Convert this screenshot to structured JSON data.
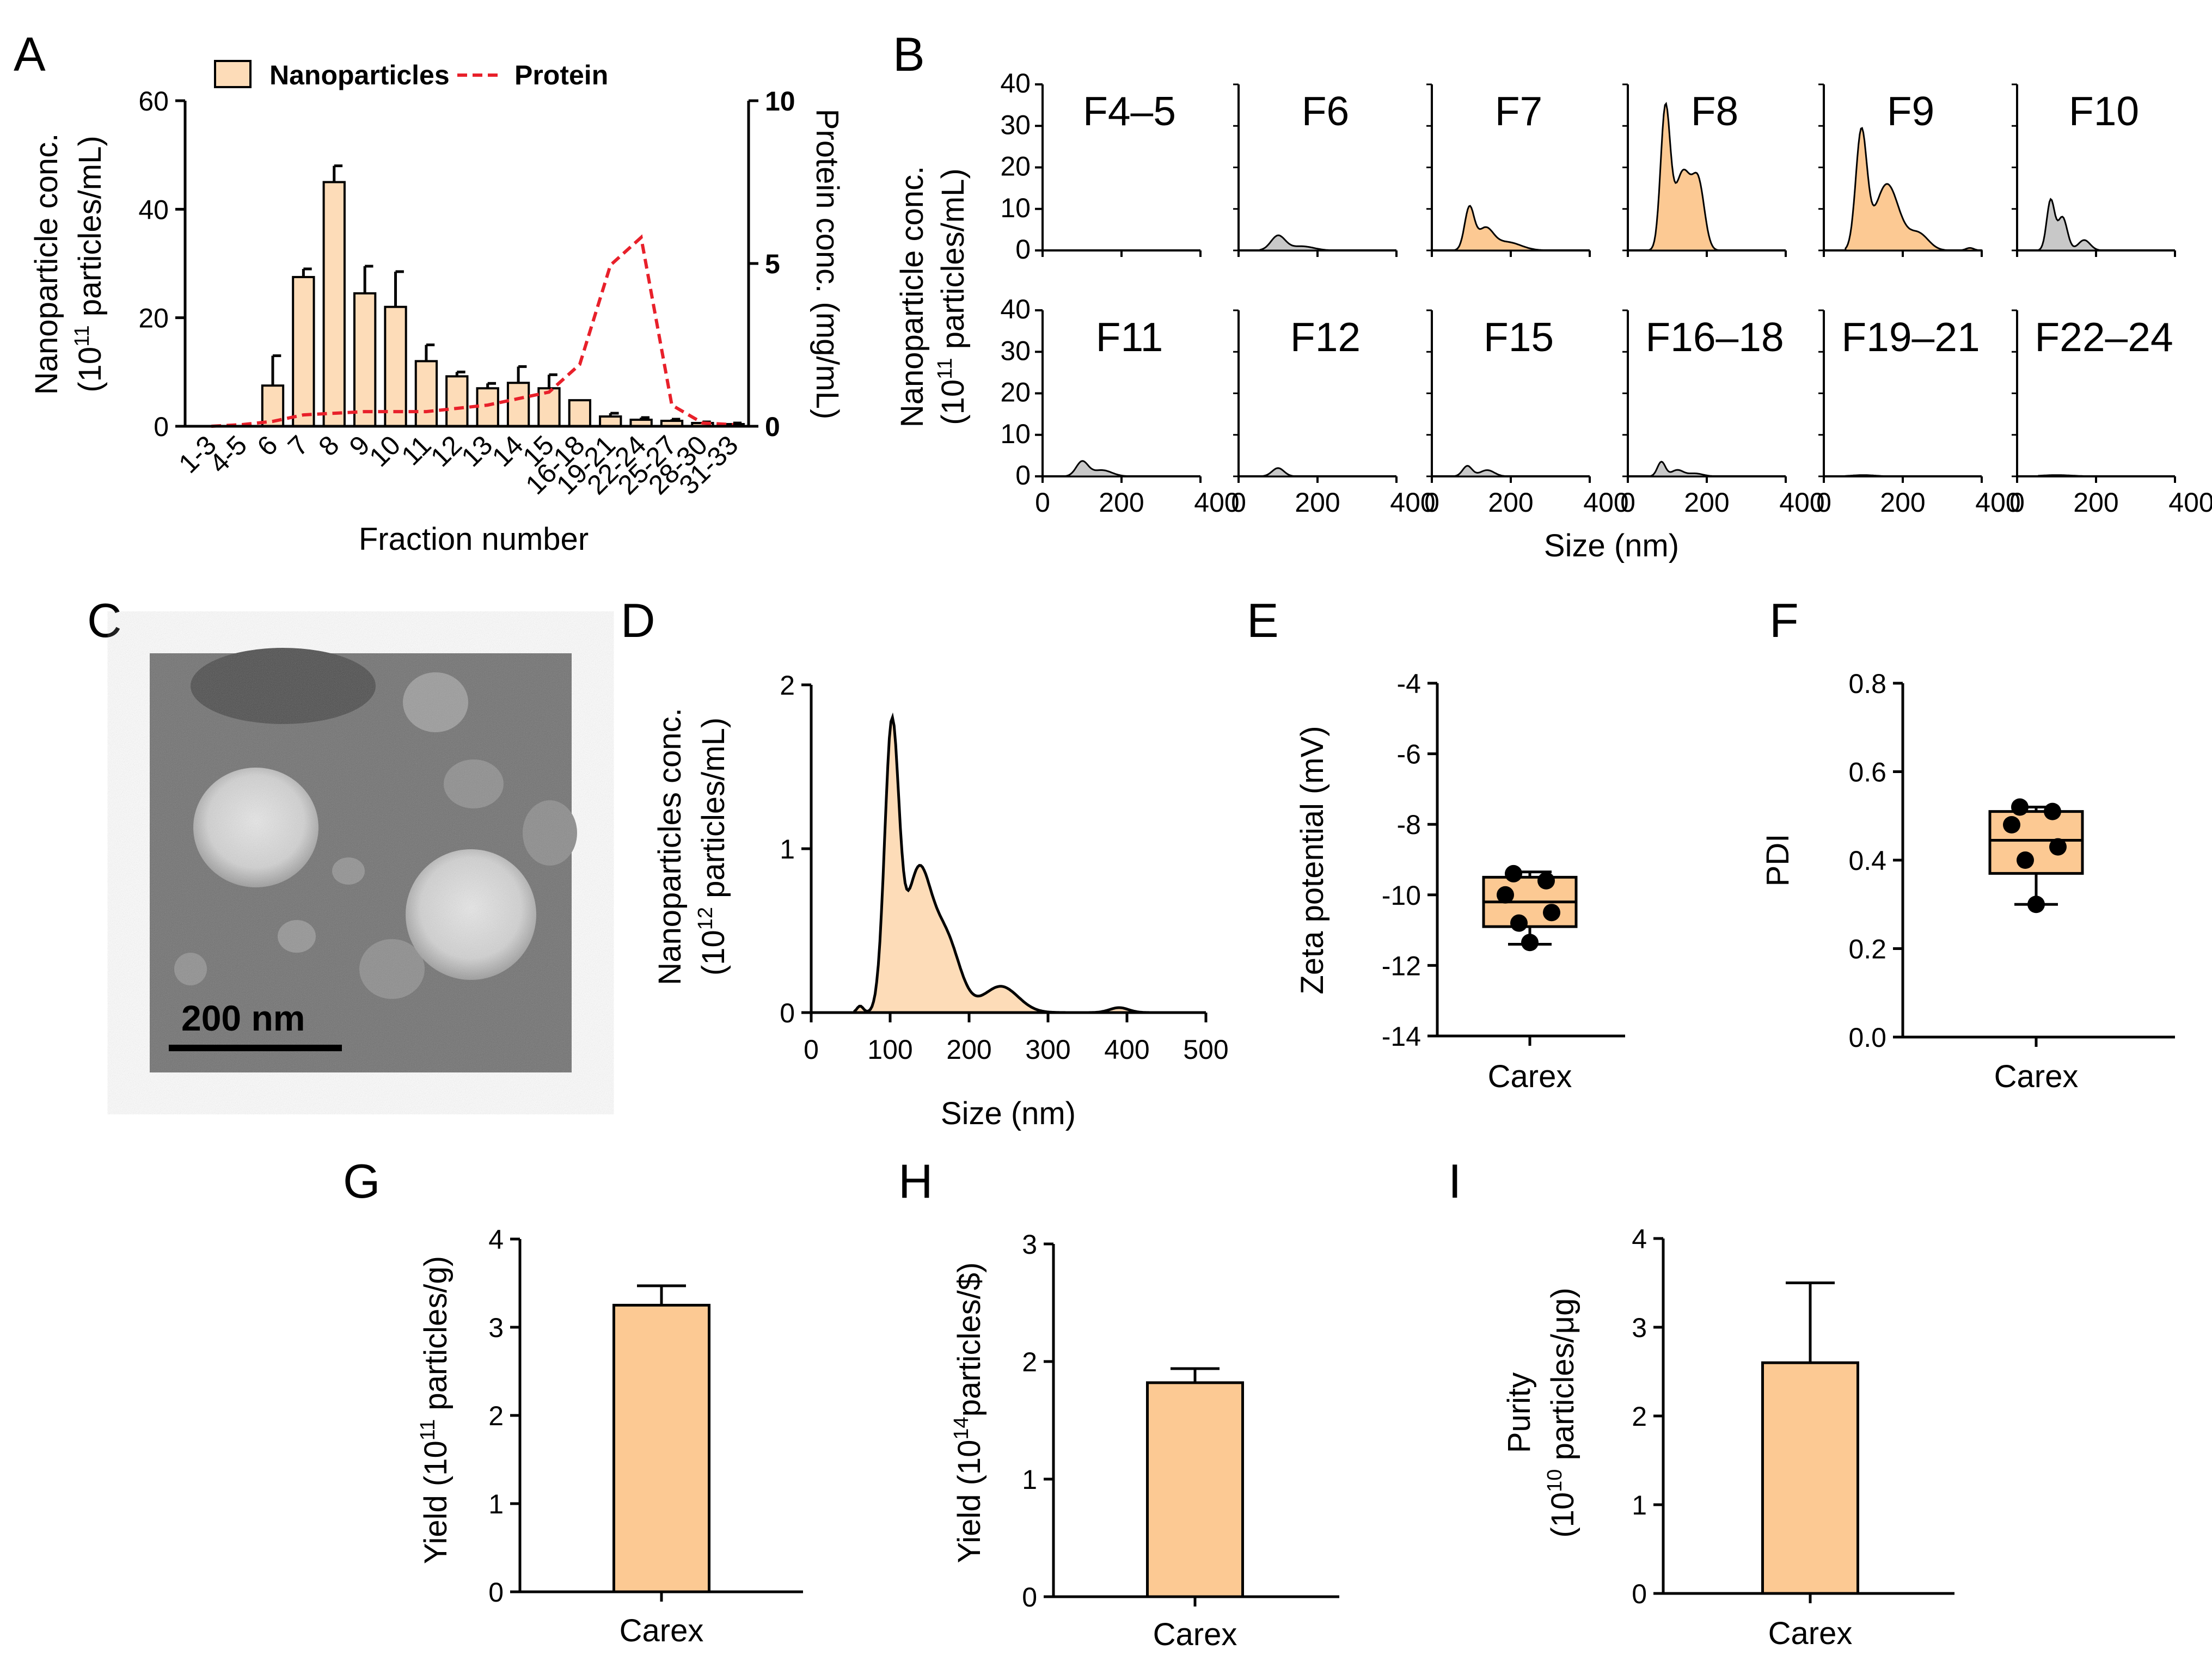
{
  "colors": {
    "bar": "#FCC993",
    "bar_light": "#FDDCB8",
    "gray": "#C8C8C8",
    "protein": "#E8202A",
    "axis": "#000000"
  },
  "panels": {
    "A": "A",
    "B": "B",
    "C": "C",
    "D": "D",
    "E": "E",
    "F": "F",
    "G": "G",
    "H": "H",
    "I": "I"
  },
  "tem": {
    "scale_bar": "200  nm",
    "description": "TEM micrograph of Carex nanoparticles"
  },
  "chart_data": [
    {
      "id": "A",
      "type": "bar",
      "categories": [
        "1-3",
        "4-5",
        "6",
        "7",
        "8",
        "9",
        "10",
        "11",
        "12",
        "13",
        "14",
        "15",
        "16-18",
        "19-21",
        "22-24",
        "25-27",
        "28-30",
        "31-33"
      ],
      "series": [
        {
          "name": "Nanoparticles",
          "values": [
            0,
            0,
            7.5,
            27.5,
            45,
            24.5,
            22,
            12,
            9.2,
            7,
            8,
            7,
            4.8,
            1.8,
            1.2,
            1,
            0.6,
            0.4
          ],
          "errors": [
            0,
            0,
            5.5,
            1.5,
            3,
            5,
            6.5,
            3,
            0.8,
            0.9,
            3,
            2.5,
            0,
            0.6,
            0.4,
            0.3,
            0.2,
            0.2
          ]
        },
        {
          "name": "Protein",
          "axis": "right",
          "values": [
            0,
            0.05,
            0.15,
            0.35,
            0.4,
            0.45,
            0.45,
            0.45,
            0.55,
            0.65,
            0.85,
            1.05,
            1.9,
            4.95,
            5.8,
            0.65,
            0.1,
            0.05
          ]
        }
      ],
      "legend": [
        "Nanoparticles",
        "Protein"
      ],
      "xlabel": "Fraction number",
      "ylabel_line1": "Nanoparticle conc.",
      "ylabel_line2_pre": "(10",
      "ylabel_line2_sup": "11",
      "ylabel_line2_post": " particles/mL)",
      "y2label": "Protein conc. (mg/mL)",
      "ylim": [
        0,
        60
      ],
      "yticks": [
        "0",
        "20",
        "40",
        "60"
      ],
      "y2lim": [
        0,
        10
      ],
      "y2ticks": [
        "0",
        "5",
        "10"
      ]
    },
    {
      "id": "B",
      "type": "area",
      "ylabel_line1": "Nanoparticle conc.",
      "ylabel_line2_pre": "(10",
      "ylabel_line2_sup": "11",
      "ylabel_line2_post": " particles/mL)",
      "xlabel": "Size (nm)",
      "xlim": [
        0,
        400
      ],
      "ylim": [
        0,
        40
      ],
      "xticks": [
        "0",
        "200",
        "400"
      ],
      "yticks": [
        "0",
        "10",
        "20",
        "30",
        "40"
      ],
      "subplots": [
        {
          "label": "F4–5",
          "color": "none",
          "peaks": []
        },
        {
          "label": "F6",
          "color": "gray",
          "peaks": [
            [
              100,
              3.5,
              18
            ],
            [
              160,
              1,
              30
            ]
          ]
        },
        {
          "label": "F7",
          "color": "orange",
          "peaks": [
            [
              95,
              10,
              12
            ],
            [
              135,
              5,
              20
            ],
            [
              190,
              2,
              35
            ]
          ]
        },
        {
          "label": "F8",
          "color": "orange",
          "peaks": [
            [
              95,
              33,
              12
            ],
            [
              140,
              19,
              22
            ],
            [
              180,
              14,
              15
            ]
          ]
        },
        {
          "label": "F9",
          "color": "orange",
          "peaks": [
            [
              95,
              28,
              14
            ],
            [
              160,
              16,
              30
            ],
            [
              240,
              4,
              25
            ],
            [
              370,
              0.6,
              10
            ]
          ]
        },
        {
          "label": "F10",
          "color": "gray",
          "peaks": [
            [
              85,
              12,
              10
            ],
            [
              115,
              8,
              12
            ],
            [
              170,
              2.5,
              15
            ]
          ]
        },
        {
          "label": "F11",
          "color": "gray",
          "peaks": [
            [
              100,
              3.5,
              15
            ],
            [
              150,
              1.5,
              25
            ]
          ]
        },
        {
          "label": "F12",
          "color": "gray",
          "peaks": [
            [
              100,
              2,
              15
            ]
          ]
        },
        {
          "label": "F15",
          "color": "gray",
          "peaks": [
            [
              90,
              2.5,
              12
            ],
            [
              140,
              1.5,
              18
            ]
          ]
        },
        {
          "label": "F16–18",
          "color": "gray",
          "peaks": [
            [
              85,
              3.5,
              10
            ],
            [
              125,
              1.5,
              15
            ],
            [
              170,
              0.7,
              20
            ]
          ]
        },
        {
          "label": "F19–21",
          "color": "gray",
          "peaks": [
            [
              100,
              0.3,
              30
            ]
          ]
        },
        {
          "label": "F22–24",
          "color": "gray",
          "peaks": [
            [
              100,
              0.3,
              40
            ]
          ]
        }
      ]
    },
    {
      "id": "D",
      "type": "area",
      "ylabel_line1": "Nanoparticles conc.",
      "ylabel_line2_pre": "(10",
      "ylabel_line2_sup": "12",
      "ylabel_line2_post": " particles/mL)",
      "xlabel": "Size (nm)",
      "xlim": [
        0,
        500
      ],
      "ylim": [
        0,
        2
      ],
      "xticks": [
        "0",
        "100",
        "200",
        "300",
        "400",
        "500"
      ],
      "yticks": [
        "0",
        "1",
        "2"
      ],
      "peaks": [
        [
          102,
          1.7,
          9
        ],
        [
          135,
          0.82,
          16
        ],
        [
          170,
          0.45,
          18
        ],
        [
          240,
          0.16,
          22
        ],
        [
          390,
          0.03,
          12
        ],
        [
          62,
          0.04,
          4
        ]
      ]
    },
    {
      "id": "E",
      "type": "box",
      "category": "Carex",
      "ylabel": "Zeta potential (mV)",
      "ylim": [
        -14,
        -4
      ],
      "yticks": [
        "-14",
        "-12",
        "-10",
        "-8",
        "-6",
        "-4"
      ],
      "box": {
        "min": -11.4,
        "q1": -10.9,
        "median": -10.2,
        "q3": -9.5,
        "max": -9.35
      },
      "points": [
        -9.4,
        -9.6,
        -10.0,
        -10.5,
        -10.8,
        -11.35
      ]
    },
    {
      "id": "F",
      "type": "box",
      "category": "Carex",
      "ylabel": "PDI",
      "ylim": [
        0,
        0.8
      ],
      "yticks": [
        "0.0",
        "0.2",
        "0.4",
        "0.6",
        "0.8"
      ],
      "box": {
        "min": 0.3,
        "q1": 0.37,
        "median": 0.445,
        "q3": 0.51,
        "max": 0.52
      },
      "points": [
        0.52,
        0.51,
        0.48,
        0.43,
        0.4,
        0.3
      ]
    },
    {
      "id": "G",
      "type": "bar",
      "categories": [
        "Carex"
      ],
      "values": [
        3.25
      ],
      "errors": [
        0.22
      ],
      "ylabel_pre": "Yield (10",
      "ylabel_sup": "11",
      "ylabel_post": " particles/g)",
      "ylim": [
        0,
        4
      ],
      "yticks": [
        "0",
        "1",
        "2",
        "3",
        "4"
      ]
    },
    {
      "id": "H",
      "type": "bar",
      "categories": [
        "Carex"
      ],
      "values": [
        1.82
      ],
      "errors": [
        0.12
      ],
      "ylabel_pre": "Yield (10",
      "ylabel_sup": "14",
      "ylabel_post": "particles/$)",
      "ylim": [
        0,
        3
      ],
      "yticks": [
        "0",
        "1",
        "2",
        "3"
      ]
    },
    {
      "id": "I",
      "type": "bar",
      "categories": [
        "Carex"
      ],
      "values": [
        2.6
      ],
      "errors": [
        0.9
      ],
      "ylabel_line1": "Purity",
      "ylabel_pre": "(10",
      "ylabel_sup": "10",
      "ylabel_post": " particles/μg)",
      "ylim": [
        0,
        4
      ],
      "yticks": [
        "0",
        "1",
        "2",
        "3",
        "4"
      ]
    }
  ]
}
